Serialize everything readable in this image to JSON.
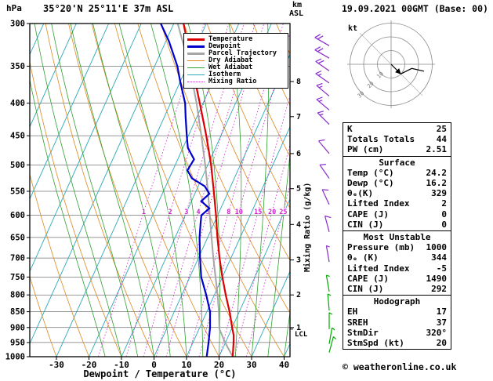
{
  "meta": {
    "station": "35°20'N 25°11'E 37m ASL",
    "datetime": "19.09.2021 00GMT (Base: 00)",
    "copyright": "© weatheronline.co.uk"
  },
  "axes": {
    "pressure_label": "hPa",
    "km_label_1": "km",
    "km_label_2": "ASL",
    "kt_label": "kt",
    "x_label": "Dewpoint / Temperature (°C)",
    "mixing_label": "Mixing Ratio (g/kg)",
    "lcl_label": "LCL",
    "pressure_ticks": [
      300,
      350,
      400,
      450,
      500,
      550,
      600,
      650,
      700,
      750,
      800,
      850,
      900,
      950,
      1000
    ],
    "temp_ticks": [
      -30,
      -20,
      -10,
      0,
      10,
      20,
      30,
      40
    ],
    "km_ticks": [
      {
        "km": 8,
        "p": 370
      },
      {
        "km": 7,
        "p": 420
      },
      {
        "km": 6,
        "p": 480
      },
      {
        "km": 5,
        "p": 545
      },
      {
        "km": 4,
        "p": 620
      },
      {
        "km": 3,
        "p": 705
      },
      {
        "km": 2,
        "p": 800
      },
      {
        "km": 1,
        "p": 900
      }
    ],
    "lcl_pressure": 905
  },
  "colors": {
    "temperature": "#dd0000",
    "dewpoint": "#0000cc",
    "parcel": "#a6a6a6",
    "dry_adiabat": "#dd8822",
    "wet_adiabat": "#30a030",
    "isotherm": "#2aa8b8",
    "mixing_ratio": "#cc22cc",
    "grid": "#333333",
    "barb_purple": "#8a2bd0",
    "barb_green": "#00aa00"
  },
  "legend": {
    "items": [
      {
        "label": "Temperature",
        "color": "#dd0000",
        "weight": 3,
        "dash": false
      },
      {
        "label": "Dewpoint",
        "color": "#0000cc",
        "weight": 3,
        "dash": false
      },
      {
        "label": "Parcel Trajectory",
        "color": "#a6a6a6",
        "weight": 3,
        "dash": false
      },
      {
        "label": "Dry Adiabat",
        "color": "#dd8822",
        "weight": 1,
        "dash": false
      },
      {
        "label": "Wet Adiabat",
        "color": "#30a030",
        "weight": 1,
        "dash": false
      },
      {
        "label": "Isotherm",
        "color": "#2aa8b8",
        "weight": 1,
        "dash": false
      },
      {
        "label": "Mixing Ratio",
        "color": "#cc22cc",
        "weight": 1,
        "dash": true
      }
    ]
  },
  "chart_data": {
    "type": "line",
    "variant": "skew-t-log-p",
    "pressure_range": [
      300,
      1000
    ],
    "temp_range": [
      -30,
      40
    ],
    "isotherms": {
      "min": -90,
      "max": 40,
      "step": 10
    },
    "dry_adiabats": {
      "min": -40,
      "max": 180,
      "step": 10
    },
    "wet_adiabats": {
      "min": -15,
      "max": 40,
      "step": 5
    },
    "mixing_ratio_lines": [
      1,
      2,
      3,
      4,
      5,
      8,
      10,
      15,
      20,
      25
    ],
    "series": [
      {
        "name": "Parcel Trajectory",
        "color": "#a6a6a6",
        "width": 2,
        "points": [
          [
            1000,
            24.2
          ],
          [
            950,
            19.9
          ],
          [
            905,
            16.3
          ],
          [
            850,
            13.7
          ],
          [
            800,
            11
          ],
          [
            750,
            7.9
          ],
          [
            700,
            4.6
          ],
          [
            650,
            1.2
          ],
          [
            600,
            -2.4
          ],
          [
            550,
            -6.3
          ],
          [
            500,
            -10.8
          ],
          [
            450,
            -16
          ],
          [
            400,
            -22
          ],
          [
            350,
            -29.3
          ],
          [
            300,
            -38.8
          ]
        ]
      },
      {
        "name": "Dewpoint",
        "color": "#0000cc",
        "width": 2.2,
        "points": [
          [
            1000,
            16.2
          ],
          [
            950,
            14.8
          ],
          [
            900,
            13.2
          ],
          [
            850,
            11
          ],
          [
            800,
            7.5
          ],
          [
            750,
            3.5
          ],
          [
            700,
            0.5
          ],
          [
            650,
            -2.5
          ],
          [
            620,
            -4
          ],
          [
            600,
            -5
          ],
          [
            585,
            -3.5
          ],
          [
            570,
            -7
          ],
          [
            555,
            -5.5
          ],
          [
            540,
            -8
          ],
          [
            525,
            -13
          ],
          [
            510,
            -15.5
          ],
          [
            490,
            -15
          ],
          [
            470,
            -18.5
          ],
          [
            450,
            -20.5
          ],
          [
            420,
            -23.5
          ],
          [
            400,
            -25.5
          ],
          [
            370,
            -30
          ],
          [
            350,
            -33
          ],
          [
            320,
            -39
          ],
          [
            300,
            -44
          ]
        ]
      },
      {
        "name": "Temperature",
        "color": "#dd0000",
        "width": 2.2,
        "points": [
          [
            1000,
            24.2
          ],
          [
            950,
            22.5
          ],
          [
            925,
            21.5
          ],
          [
            900,
            20
          ],
          [
            850,
            17
          ],
          [
            800,
            13.5
          ],
          [
            750,
            10
          ],
          [
            700,
            6.5
          ],
          [
            650,
            3
          ],
          [
            600,
            -0.5
          ],
          [
            550,
            -4.5
          ],
          [
            500,
            -9
          ],
          [
            450,
            -14.5
          ],
          [
            400,
            -21
          ],
          [
            350,
            -28.5
          ],
          [
            300,
            -37
          ]
        ]
      }
    ]
  },
  "winds": {
    "barbs": [
      {
        "p": 325,
        "dir": 300,
        "spd": 20,
        "color": "barb_purple"
      },
      {
        "p": 340,
        "dir": 300,
        "spd": 20,
        "color": "barb_purple"
      },
      {
        "p": 356,
        "dir": 305,
        "spd": 20,
        "color": "barb_purple"
      },
      {
        "p": 372,
        "dir": 305,
        "spd": 15,
        "color": "barb_purple"
      },
      {
        "p": 390,
        "dir": 310,
        "spd": 15,
        "color": "barb_purple"
      },
      {
        "p": 410,
        "dir": 310,
        "spd": 15,
        "color": "barb_purple"
      },
      {
        "p": 432,
        "dir": 315,
        "spd": 15,
        "color": "barb_purple"
      },
      {
        "p": 480,
        "dir": 320,
        "spd": 10,
        "color": "barb_purple"
      },
      {
        "p": 525,
        "dir": 325,
        "spd": 10,
        "color": "barb_purple"
      },
      {
        "p": 577,
        "dir": 335,
        "spd": 10,
        "color": "barb_purple"
      },
      {
        "p": 637,
        "dir": 345,
        "spd": 10,
        "color": "barb_purple"
      },
      {
        "p": 710,
        "dir": 350,
        "spd": 8,
        "color": "barb_purple"
      },
      {
        "p": 790,
        "dir": 350,
        "spd": 8,
        "color": "barb_green"
      },
      {
        "p": 846,
        "dir": 355,
        "spd": 8,
        "color": "barb_green"
      },
      {
        "p": 905,
        "dir": 0,
        "spd": 5,
        "color": "barb_green"
      },
      {
        "p": 955,
        "dir": 10,
        "spd": 5,
        "color": "barb_green"
      },
      {
        "p": 985,
        "dir": 15,
        "spd": 5,
        "color": "barb_green"
      }
    ]
  },
  "hodograph": {
    "rings": [
      10,
      20,
      30
    ],
    "ring_labels": [
      "10",
      "20",
      "30"
    ],
    "storm_arrow": [
      [
        0,
        0
      ],
      [
        7,
        -7
      ]
    ],
    "trace": [
      [
        7,
        -7
      ],
      [
        15,
        -3
      ],
      [
        24,
        -5
      ]
    ]
  },
  "panel": {
    "indices": {
      "rows": [
        {
          "label": "K",
          "value": "25"
        },
        {
          "label": "Totals Totals",
          "value": "44"
        },
        {
          "label": "PW (cm)",
          "value": "2.51"
        }
      ]
    },
    "surface": {
      "title": "Surface",
      "rows": [
        {
          "label": "Temp (°C)",
          "value": "24.2"
        },
        {
          "label": "Dewp (°C)",
          "value": "16.2"
        },
        {
          "label": "θₑ(K)",
          "value": "329"
        },
        {
          "label": "Lifted Index",
          "value": "2"
        },
        {
          "label": "CAPE (J)",
          "value": "0"
        },
        {
          "label": "CIN (J)",
          "value": "0"
        }
      ]
    },
    "most_unstable": {
      "title": "Most Unstable",
      "rows": [
        {
          "label": "Pressure (mb)",
          "value": "1000"
        },
        {
          "label": "θₑ (K)",
          "value": "344"
        },
        {
          "label": "Lifted Index",
          "value": "-5"
        },
        {
          "label": "CAPE (J)",
          "value": "1490"
        },
        {
          "label": "CIN (J)",
          "value": "292"
        }
      ]
    },
    "hodo": {
      "title": "Hodograph",
      "rows": [
        {
          "label": "EH",
          "value": "17"
        },
        {
          "label": "SREH",
          "value": "37"
        },
        {
          "label": "StmDir",
          "value": "320°"
        },
        {
          "label": "StmSpd (kt)",
          "value": "20"
        }
      ]
    }
  }
}
